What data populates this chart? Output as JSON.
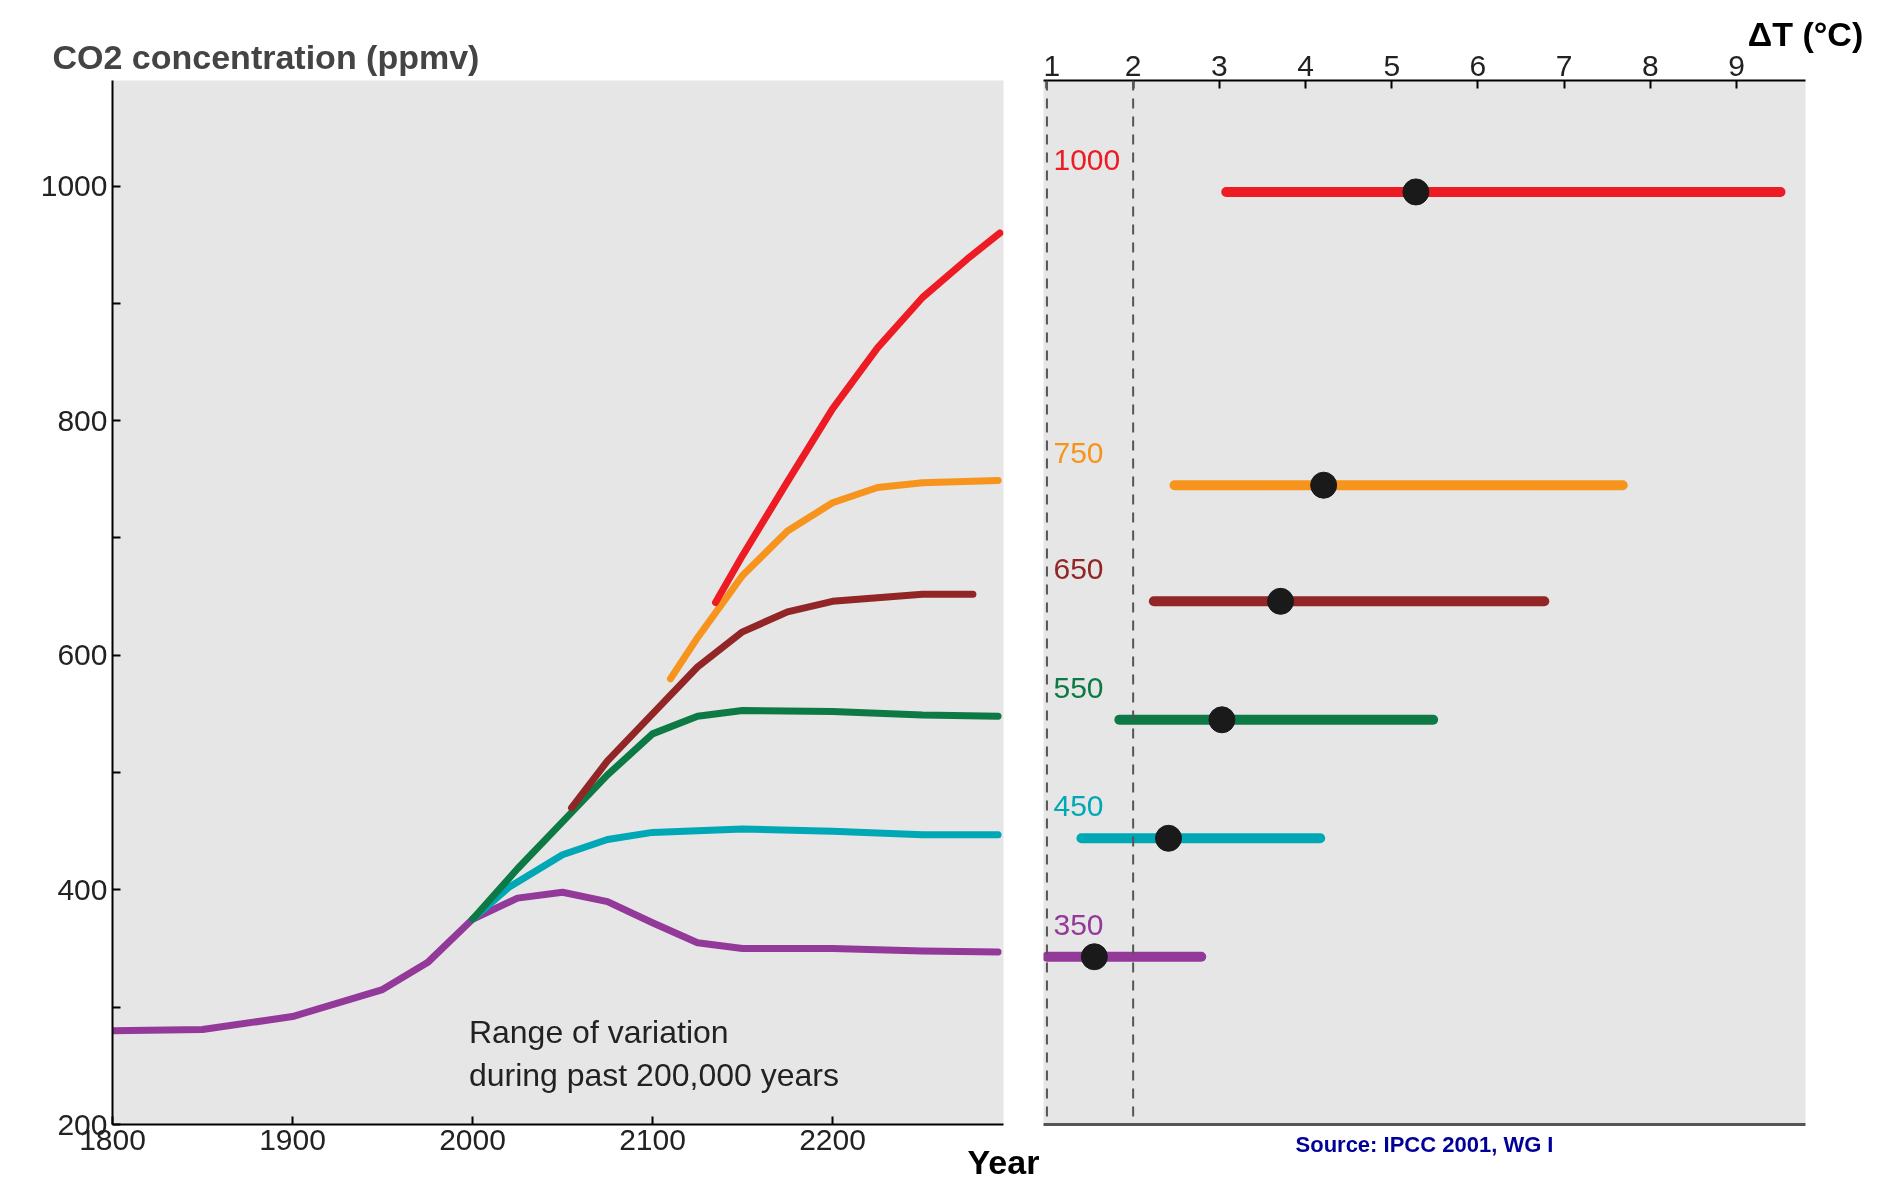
{
  "chart_data": [
    {
      "type": "line",
      "xlabel": "Year",
      "ylabel": "CO2 concentration (ppmv)",
      "xlim": [
        1800,
        2295
      ],
      "xticks": [
        1800,
        1900,
        2000,
        2100,
        2200
      ],
      "ylim": [
        200,
        1090
      ],
      "yticks": [
        200,
        {
          "value": 300,
          "label": null
        },
        400,
        {
          "value": 500,
          "label": null
        },
        600,
        {
          "value": 700,
          "label": null
        },
        800,
        {
          "value": 900,
          "label": null
        },
        1000
      ],
      "annotations": [
        "Range of variation\nduring past 200,000 years"
      ],
      "series": [
        {
          "color": "#93399a",
          "x": [
            1800,
            1850,
            1900,
            1950,
            1975,
            2000,
            2025,
            2050,
            2075,
            2100,
            2125,
            2150,
            2200,
            2250,
            2292
          ],
          "values": [
            280,
            281,
            292,
            315,
            338,
            375,
            393,
            398,
            390,
            372,
            355,
            350,
            350,
            348,
            347
          ]
        },
        {
          "color": "#00a8b5",
          "x": [
            2000,
            2020,
            2050,
            2075,
            2100,
            2150,
            2200,
            2250,
            2292
          ],
          "values": [
            375,
            402,
            430,
            443,
            449,
            452,
            450,
            447,
            447
          ]
        },
        {
          "color": "#0d7a45",
          "x": [
            2000,
            2025,
            2050,
            2075,
            2100,
            2125,
            2150,
            2200,
            2250,
            2292
          ],
          "values": [
            375,
            418,
            458,
            498,
            533,
            548,
            553,
            552,
            549,
            548
          ]
        },
        {
          "color": "#922626",
          "x": [
            2055,
            2075,
            2100,
            2125,
            2150,
            2175,
            2200,
            2250,
            2278
          ],
          "values": [
            470,
            510,
            550,
            590,
            620,
            637,
            646,
            652,
            652
          ]
        },
        {
          "color": "#f7941d",
          "x": [
            2110,
            2125,
            2150,
            2175,
            2200,
            2225,
            2250,
            2292
          ],
          "values": [
            580,
            615,
            668,
            706,
            730,
            743,
            747,
            749
          ]
        },
        {
          "color": "#ed1c24",
          "x": [
            2135,
            2150,
            2175,
            2200,
            2225,
            2250,
            2275,
            2293
          ],
          "values": [
            645,
            685,
            748,
            810,
            862,
            905,
            938,
            960
          ]
        }
      ]
    },
    {
      "type": "line",
      "xlabel": "ΔT (°C)",
      "xlim": [
        0.96,
        9.8
      ],
      "xticks": [
        1,
        2,
        3,
        4,
        5,
        6,
        7,
        8,
        9
      ],
      "ylim": [
        200,
        1090
      ],
      "tick_labels": "x",
      "ref_lines": [
        {
          "axis": "x",
          "value": 1,
          "color": "#555555",
          "line_style": "dashed"
        },
        {
          "axis": "x",
          "value": 2,
          "color": "#555555",
          "line_style": "dashed"
        }
      ],
      "annotations": [
        "Source: IPCC 2001, WG I"
      ],
      "series": [
        {
          "name": "1000",
          "color": "#ed1c24",
          "x": [
            3.08,
            9.51
          ],
          "values": [
            995,
            995
          ]
        },
        {
          "name": "750",
          "color": "#f7941d",
          "x": [
            2.48,
            7.68
          ],
          "values": [
            745,
            745
          ]
        },
        {
          "name": "650",
          "color": "#922626",
          "x": [
            2.24,
            6.77
          ],
          "values": [
            646,
            646
          ]
        },
        {
          "name": "550",
          "color": "#0d7a45",
          "x": [
            1.84,
            5.48
          ],
          "values": [
            545,
            545
          ]
        },
        {
          "name": "450",
          "color": "#00a8b5",
          "x": [
            1.4,
            4.17
          ],
          "values": [
            444,
            444
          ]
        },
        {
          "name": "350",
          "color": "#93399a",
          "x": [
            1.0,
            2.79
          ],
          "values": [
            343,
            343
          ]
        },
        {
          "type": "scatter",
          "color": "#1a1a1a",
          "marker": "circle",
          "x": [
            5.28,
            4.21,
            3.71,
            3.03,
            2.41,
            1.55
          ],
          "values": [
            995,
            745,
            646,
            545,
            444,
            343
          ]
        }
      ]
    }
  ]
}
